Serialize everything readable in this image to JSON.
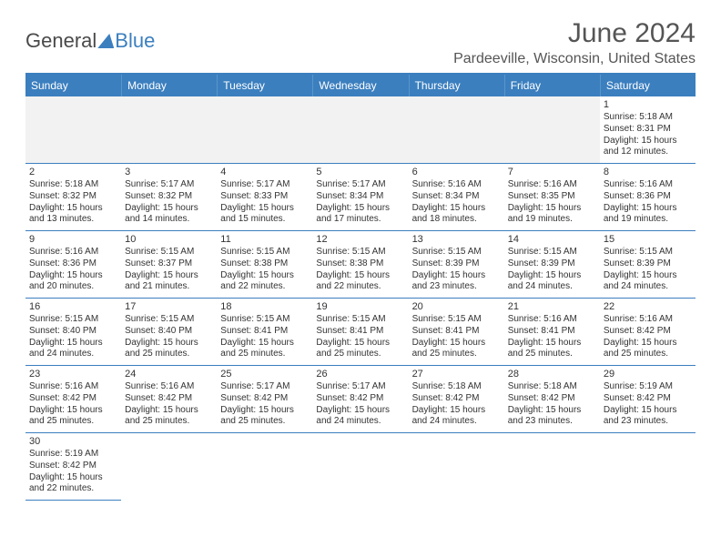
{
  "brand": {
    "part1": "General",
    "part2": "Blue"
  },
  "title": "June 2024",
  "location": "Pardeeville, Wisconsin, United States",
  "colors": {
    "header_bg": "#3b7fbf",
    "header_text": "#ffffff",
    "border": "#3b7fbf",
    "blank_bg": "#f2f2f2",
    "text": "#333333",
    "title_text": "#555555"
  },
  "weekdays": [
    "Sunday",
    "Monday",
    "Tuesday",
    "Wednesday",
    "Thursday",
    "Friday",
    "Saturday"
  ],
  "layout": {
    "columns": 7,
    "rows": 6,
    "first_weekday_index": 6,
    "days_in_month": 30
  },
  "days": {
    "1": {
      "sunrise": "5:18 AM",
      "sunset": "8:31 PM",
      "daylight": "15 hours and 12 minutes."
    },
    "2": {
      "sunrise": "5:18 AM",
      "sunset": "8:32 PM",
      "daylight": "15 hours and 13 minutes."
    },
    "3": {
      "sunrise": "5:17 AM",
      "sunset": "8:32 PM",
      "daylight": "15 hours and 14 minutes."
    },
    "4": {
      "sunrise": "5:17 AM",
      "sunset": "8:33 PM",
      "daylight": "15 hours and 15 minutes."
    },
    "5": {
      "sunrise": "5:17 AM",
      "sunset": "8:34 PM",
      "daylight": "15 hours and 17 minutes."
    },
    "6": {
      "sunrise": "5:16 AM",
      "sunset": "8:34 PM",
      "daylight": "15 hours and 18 minutes."
    },
    "7": {
      "sunrise": "5:16 AM",
      "sunset": "8:35 PM",
      "daylight": "15 hours and 19 minutes."
    },
    "8": {
      "sunrise": "5:16 AM",
      "sunset": "8:36 PM",
      "daylight": "15 hours and 19 minutes."
    },
    "9": {
      "sunrise": "5:16 AM",
      "sunset": "8:36 PM",
      "daylight": "15 hours and 20 minutes."
    },
    "10": {
      "sunrise": "5:15 AM",
      "sunset": "8:37 PM",
      "daylight": "15 hours and 21 minutes."
    },
    "11": {
      "sunrise": "5:15 AM",
      "sunset": "8:38 PM",
      "daylight": "15 hours and 22 minutes."
    },
    "12": {
      "sunrise": "5:15 AM",
      "sunset": "8:38 PM",
      "daylight": "15 hours and 22 minutes."
    },
    "13": {
      "sunrise": "5:15 AM",
      "sunset": "8:39 PM",
      "daylight": "15 hours and 23 minutes."
    },
    "14": {
      "sunrise": "5:15 AM",
      "sunset": "8:39 PM",
      "daylight": "15 hours and 24 minutes."
    },
    "15": {
      "sunrise": "5:15 AM",
      "sunset": "8:39 PM",
      "daylight": "15 hours and 24 minutes."
    },
    "16": {
      "sunrise": "5:15 AM",
      "sunset": "8:40 PM",
      "daylight": "15 hours and 24 minutes."
    },
    "17": {
      "sunrise": "5:15 AM",
      "sunset": "8:40 PM",
      "daylight": "15 hours and 25 minutes."
    },
    "18": {
      "sunrise": "5:15 AM",
      "sunset": "8:41 PM",
      "daylight": "15 hours and 25 minutes."
    },
    "19": {
      "sunrise": "5:15 AM",
      "sunset": "8:41 PM",
      "daylight": "15 hours and 25 minutes."
    },
    "20": {
      "sunrise": "5:15 AM",
      "sunset": "8:41 PM",
      "daylight": "15 hours and 25 minutes."
    },
    "21": {
      "sunrise": "5:16 AM",
      "sunset": "8:41 PM",
      "daylight": "15 hours and 25 minutes."
    },
    "22": {
      "sunrise": "5:16 AM",
      "sunset": "8:42 PM",
      "daylight": "15 hours and 25 minutes."
    },
    "23": {
      "sunrise": "5:16 AM",
      "sunset": "8:42 PM",
      "daylight": "15 hours and 25 minutes."
    },
    "24": {
      "sunrise": "5:16 AM",
      "sunset": "8:42 PM",
      "daylight": "15 hours and 25 minutes."
    },
    "25": {
      "sunrise": "5:17 AM",
      "sunset": "8:42 PM",
      "daylight": "15 hours and 25 minutes."
    },
    "26": {
      "sunrise": "5:17 AM",
      "sunset": "8:42 PM",
      "daylight": "15 hours and 24 minutes."
    },
    "27": {
      "sunrise": "5:18 AM",
      "sunset": "8:42 PM",
      "daylight": "15 hours and 24 minutes."
    },
    "28": {
      "sunrise": "5:18 AM",
      "sunset": "8:42 PM",
      "daylight": "15 hours and 23 minutes."
    },
    "29": {
      "sunrise": "5:19 AM",
      "sunset": "8:42 PM",
      "daylight": "15 hours and 23 minutes."
    },
    "30": {
      "sunrise": "5:19 AM",
      "sunset": "8:42 PM",
      "daylight": "15 hours and 22 minutes."
    }
  },
  "labels": {
    "sunrise_prefix": "Sunrise: ",
    "sunset_prefix": "Sunset: ",
    "daylight_prefix": "Daylight: "
  }
}
